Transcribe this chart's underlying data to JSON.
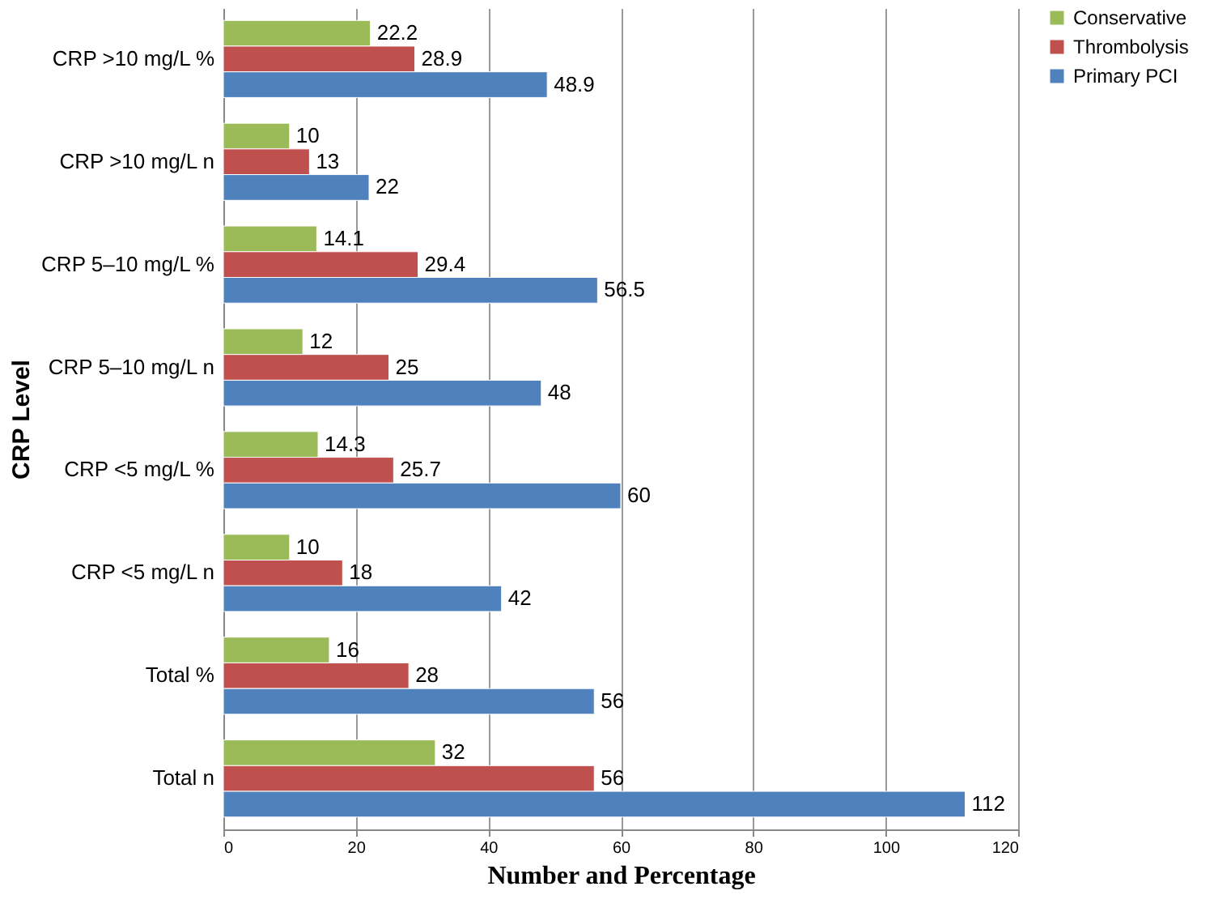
{
  "chart_data": {
    "type": "bar",
    "orientation": "horizontal",
    "xlabel": "Number and Percentage",
    "ylabel": "CRP Level",
    "categories": [
      "CRP >10 mg/L %",
      "CRP >10 mg/L n",
      "CRP 5–10 mg/L %",
      "CRP 5–10 mg/L n",
      "CRP <5 mg/L %",
      "CRP <5 mg/L n",
      "Total %",
      "Total n"
    ],
    "series": [
      {
        "name": "Conservative",
        "color": "#9bbb59",
        "values": [
          22.2,
          10,
          14.1,
          12,
          14.3,
          10,
          16,
          32
        ]
      },
      {
        "name": "Thrombolysis",
        "color": "#c0504d",
        "values": [
          28.9,
          13,
          29.4,
          25,
          25.7,
          18,
          28,
          56
        ]
      },
      {
        "name": "Primary PCI",
        "color": "#4f81bd",
        "values": [
          48.9,
          22,
          56.5,
          48,
          60,
          42,
          56,
          112
        ]
      }
    ],
    "xlim": [
      0,
      120
    ],
    "xticks": [
      0,
      20,
      40,
      60,
      80,
      100,
      120
    ],
    "grid": "x",
    "legend": "right",
    "data_labels": true
  }
}
